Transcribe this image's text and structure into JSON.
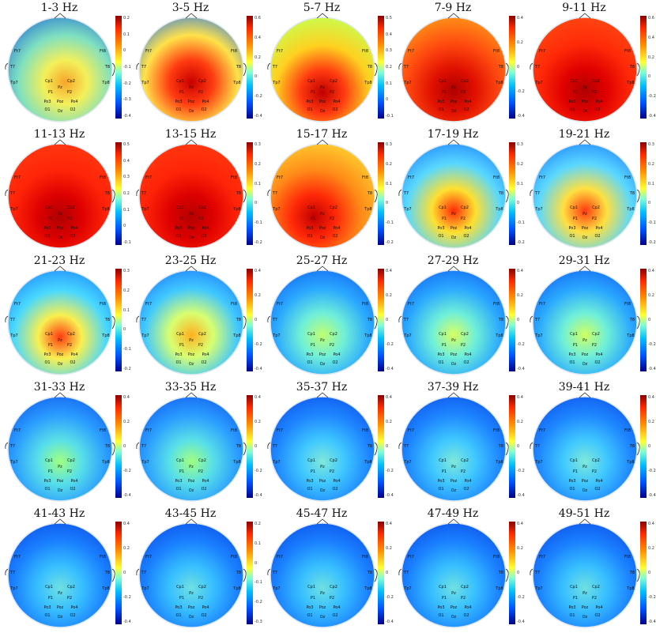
{
  "panels": [
    {
      "title": "1-3 Hz",
      "ticks": [
        "0.2",
        "0.1",
        "0",
        "-0.1",
        "-0.2",
        "-0.3",
        "-0.4"
      ]
    },
    {
      "title": "3-5 Hz",
      "ticks": [
        "0.6",
        "0.4",
        "0.2",
        "0",
        "-0.2",
        "-0.4"
      ]
    },
    {
      "title": "5-7 Hz",
      "ticks": [
        "0.5",
        "0.4",
        "0.3",
        "0.2",
        "0.1",
        "0",
        "-0.1"
      ]
    },
    {
      "title": "7-9 Hz",
      "ticks": [
        "0.4",
        "0.2",
        "0",
        "-0.2",
        "-0.4"
      ]
    },
    {
      "title": "9-11 Hz",
      "ticks": [
        "0.6",
        "0.4",
        "0.2",
        "0",
        "-0.2",
        "-0.4"
      ]
    },
    {
      "title": "11-13 Hz",
      "ticks": [
        "0.5",
        "0.4",
        "0.3",
        "0.2",
        "0.1",
        "0",
        "-0.1"
      ]
    },
    {
      "title": "13-15 Hz",
      "ticks": [
        "0.3",
        "0.2",
        "0.1",
        "0",
        "-0.1",
        "-0.2"
      ]
    },
    {
      "title": "15-17 Hz",
      "ticks": [
        "0.3",
        "0.2",
        "0.1",
        "0",
        "-0.1",
        "-0.2"
      ]
    },
    {
      "title": "17-19 Hz",
      "ticks": [
        "0.3",
        "0.2",
        "0.1",
        "0",
        "-0.1",
        "-0.2"
      ]
    },
    {
      "title": "19-21 Hz",
      "ticks": [
        "0.3",
        "0.2",
        "0.1",
        "0",
        "-0.1",
        "-0.2"
      ]
    },
    {
      "title": "21-23 Hz",
      "ticks": [
        "0.3",
        "0.2",
        "0.1",
        "0",
        "-0.1",
        "-0.2"
      ]
    },
    {
      "title": "23-25 Hz",
      "ticks": [
        "0.4",
        "0.2",
        "0",
        "-0.2",
        "-0.4"
      ]
    },
    {
      "title": "25-27 Hz",
      "ticks": [
        "0.4",
        "0.2",
        "0",
        "-0.2",
        "-0.4"
      ]
    },
    {
      "title": "27-29 Hz",
      "ticks": [
        "0.4",
        "0.2",
        "0",
        "-0.2",
        "-0.4"
      ]
    },
    {
      "title": "29-31 Hz",
      "ticks": [
        "0.4",
        "0.2",
        "0",
        "-0.2",
        "-0.4"
      ]
    },
    {
      "title": "31-33 Hz",
      "ticks": [
        "0.4",
        "0.2",
        "0",
        "-0.2",
        "-0.4"
      ]
    },
    {
      "title": "33-35 Hz",
      "ticks": [
        "0.4",
        "0.2",
        "0",
        "-0.2",
        "-0.4"
      ]
    },
    {
      "title": "35-37 Hz",
      "ticks": [
        "0.4",
        "0.2",
        "0",
        "-0.2",
        "-0.4"
      ]
    },
    {
      "title": "37-39 Hz",
      "ticks": [
        "0.4",
        "0.2",
        "0",
        "-0.2",
        "-0.4"
      ]
    },
    {
      "title": "39-41 Hz",
      "ticks": [
        "0.4",
        "0.2",
        "0",
        "-0.2",
        "-0.4"
      ]
    },
    {
      "title": "41-43 Hz",
      "ticks": [
        "0.4",
        "0.2",
        "0",
        "-0.2",
        "-0.4"
      ]
    },
    {
      "title": "43-45 Hz",
      "ticks": [
        "0.2",
        "0.1",
        "0",
        "-0.1",
        "-0.2",
        "-0.3"
      ]
    },
    {
      "title": "45-47 Hz",
      "ticks": [
        "0.4",
        "0.2",
        "0",
        "-0.2",
        "-0.4"
      ]
    },
    {
      "title": "47-49 Hz",
      "ticks": [
        "0.4",
        "0.2",
        "0",
        "-0.2",
        "-0.4"
      ]
    },
    {
      "title": "49-51 Hz",
      "ticks": [
        "0.4",
        "0.2",
        "0",
        "-0.2",
        "-0.4"
      ]
    }
  ],
  "electrodes": [
    "Ft7",
    "Ft8",
    "T7",
    "T8",
    "Tp7",
    "Tp8",
    "Cp1",
    "Cp2",
    "Pz",
    "P1",
    "P2",
    "Po3",
    "Poz",
    "Po4",
    "O1",
    "Oz",
    "O2"
  ],
  "colors": {
    "deep_red": "#8b0000",
    "red": "#ff2a00",
    "orange": "#ff8c00",
    "yellow": "#ffff33",
    "cyan": "#7fffd4",
    "light_blue": "#00bfff",
    "blue": "#0050ff",
    "deep_blue": "#00008b"
  }
}
